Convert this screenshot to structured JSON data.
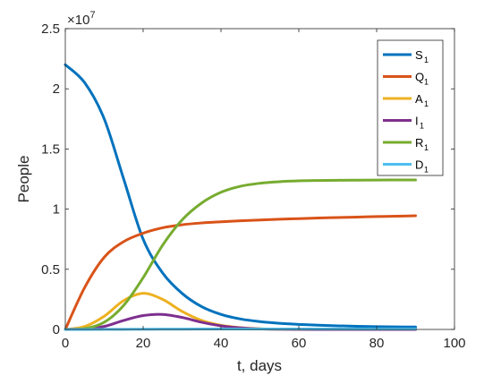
{
  "chart_data": {
    "type": "line",
    "xlabel": "t, days",
    "ylabel": "People",
    "y_exponent_label": "×10",
    "y_exponent_power": "7",
    "xlim": [
      0,
      100
    ],
    "ylim": [
      0,
      25000000.0
    ],
    "x_ticks": [
      0,
      20,
      40,
      60,
      80,
      100
    ],
    "x_tick_labels": [
      "0",
      "20",
      "40",
      "60",
      "80",
      "100"
    ],
    "y_ticks": [
      0,
      5000000,
      10000000,
      15000000,
      20000000,
      25000000
    ],
    "y_tick_labels": [
      "0",
      "0.5",
      "1",
      "1.5",
      "2",
      "2.5"
    ],
    "grid": false,
    "legend_position": "top-right",
    "x": [
      0,
      5,
      10,
      15,
      20,
      25,
      30,
      35,
      40,
      45,
      50,
      55,
      60,
      65,
      70,
      75,
      80,
      85,
      90
    ],
    "series": [
      {
        "name": "S",
        "subscript": "1",
        "color": "#0072BD",
        "values": [
          22000000,
          20500000,
          17500000,
          12500000,
          7500000,
          4700000,
          3000000,
          1900000,
          1250000,
          870000,
          650000,
          510000,
          420000,
          350000,
          300000,
          260000,
          230000,
          210000,
          200000
        ]
      },
      {
        "name": "Q",
        "subscript": "1",
        "color": "#D95319",
        "values": [
          0,
          3500000,
          6000000,
          7300000,
          8000000,
          8450000,
          8700000,
          8850000,
          8950000,
          9030000,
          9100000,
          9160000,
          9210000,
          9260000,
          9300000,
          9340000,
          9380000,
          9410000,
          9450000
        ]
      },
      {
        "name": "A",
        "subscript": "1",
        "color": "#EDB120",
        "values": [
          0,
          250000,
          1100000,
          2400000,
          3000000,
          2500000,
          1500000,
          750000,
          350000,
          150000,
          60000,
          25000,
          10000,
          5000,
          2000,
          1000,
          500,
          200,
          100
        ]
      },
      {
        "name": "I",
        "subscript": "1",
        "color": "#7E2F8E",
        "values": [
          0,
          50000,
          250000,
          750000,
          1150000,
          1250000,
          1000000,
          600000,
          300000,
          130000,
          50000,
          20000,
          8000,
          3000,
          1000,
          500,
          200,
          100,
          50
        ]
      },
      {
        "name": "R",
        "subscript": "1",
        "color": "#77AC30",
        "values": [
          0,
          80000,
          600000,
          2000000,
          4300000,
          7000000,
          9100000,
          10500000,
          11400000,
          11900000,
          12150000,
          12280000,
          12350000,
          12380000,
          12400000,
          12410000,
          12420000,
          12425000,
          12430000
        ]
      },
      {
        "name": "D",
        "subscript": "1",
        "color": "#4DBEEE",
        "values": [
          0,
          1000,
          5000,
          12000,
          20000,
          27000,
          31000,
          33500,
          35000,
          35800,
          36200,
          36400,
          36500,
          36550,
          36580,
          36600,
          36610,
          36615,
          36620
        ]
      }
    ]
  }
}
